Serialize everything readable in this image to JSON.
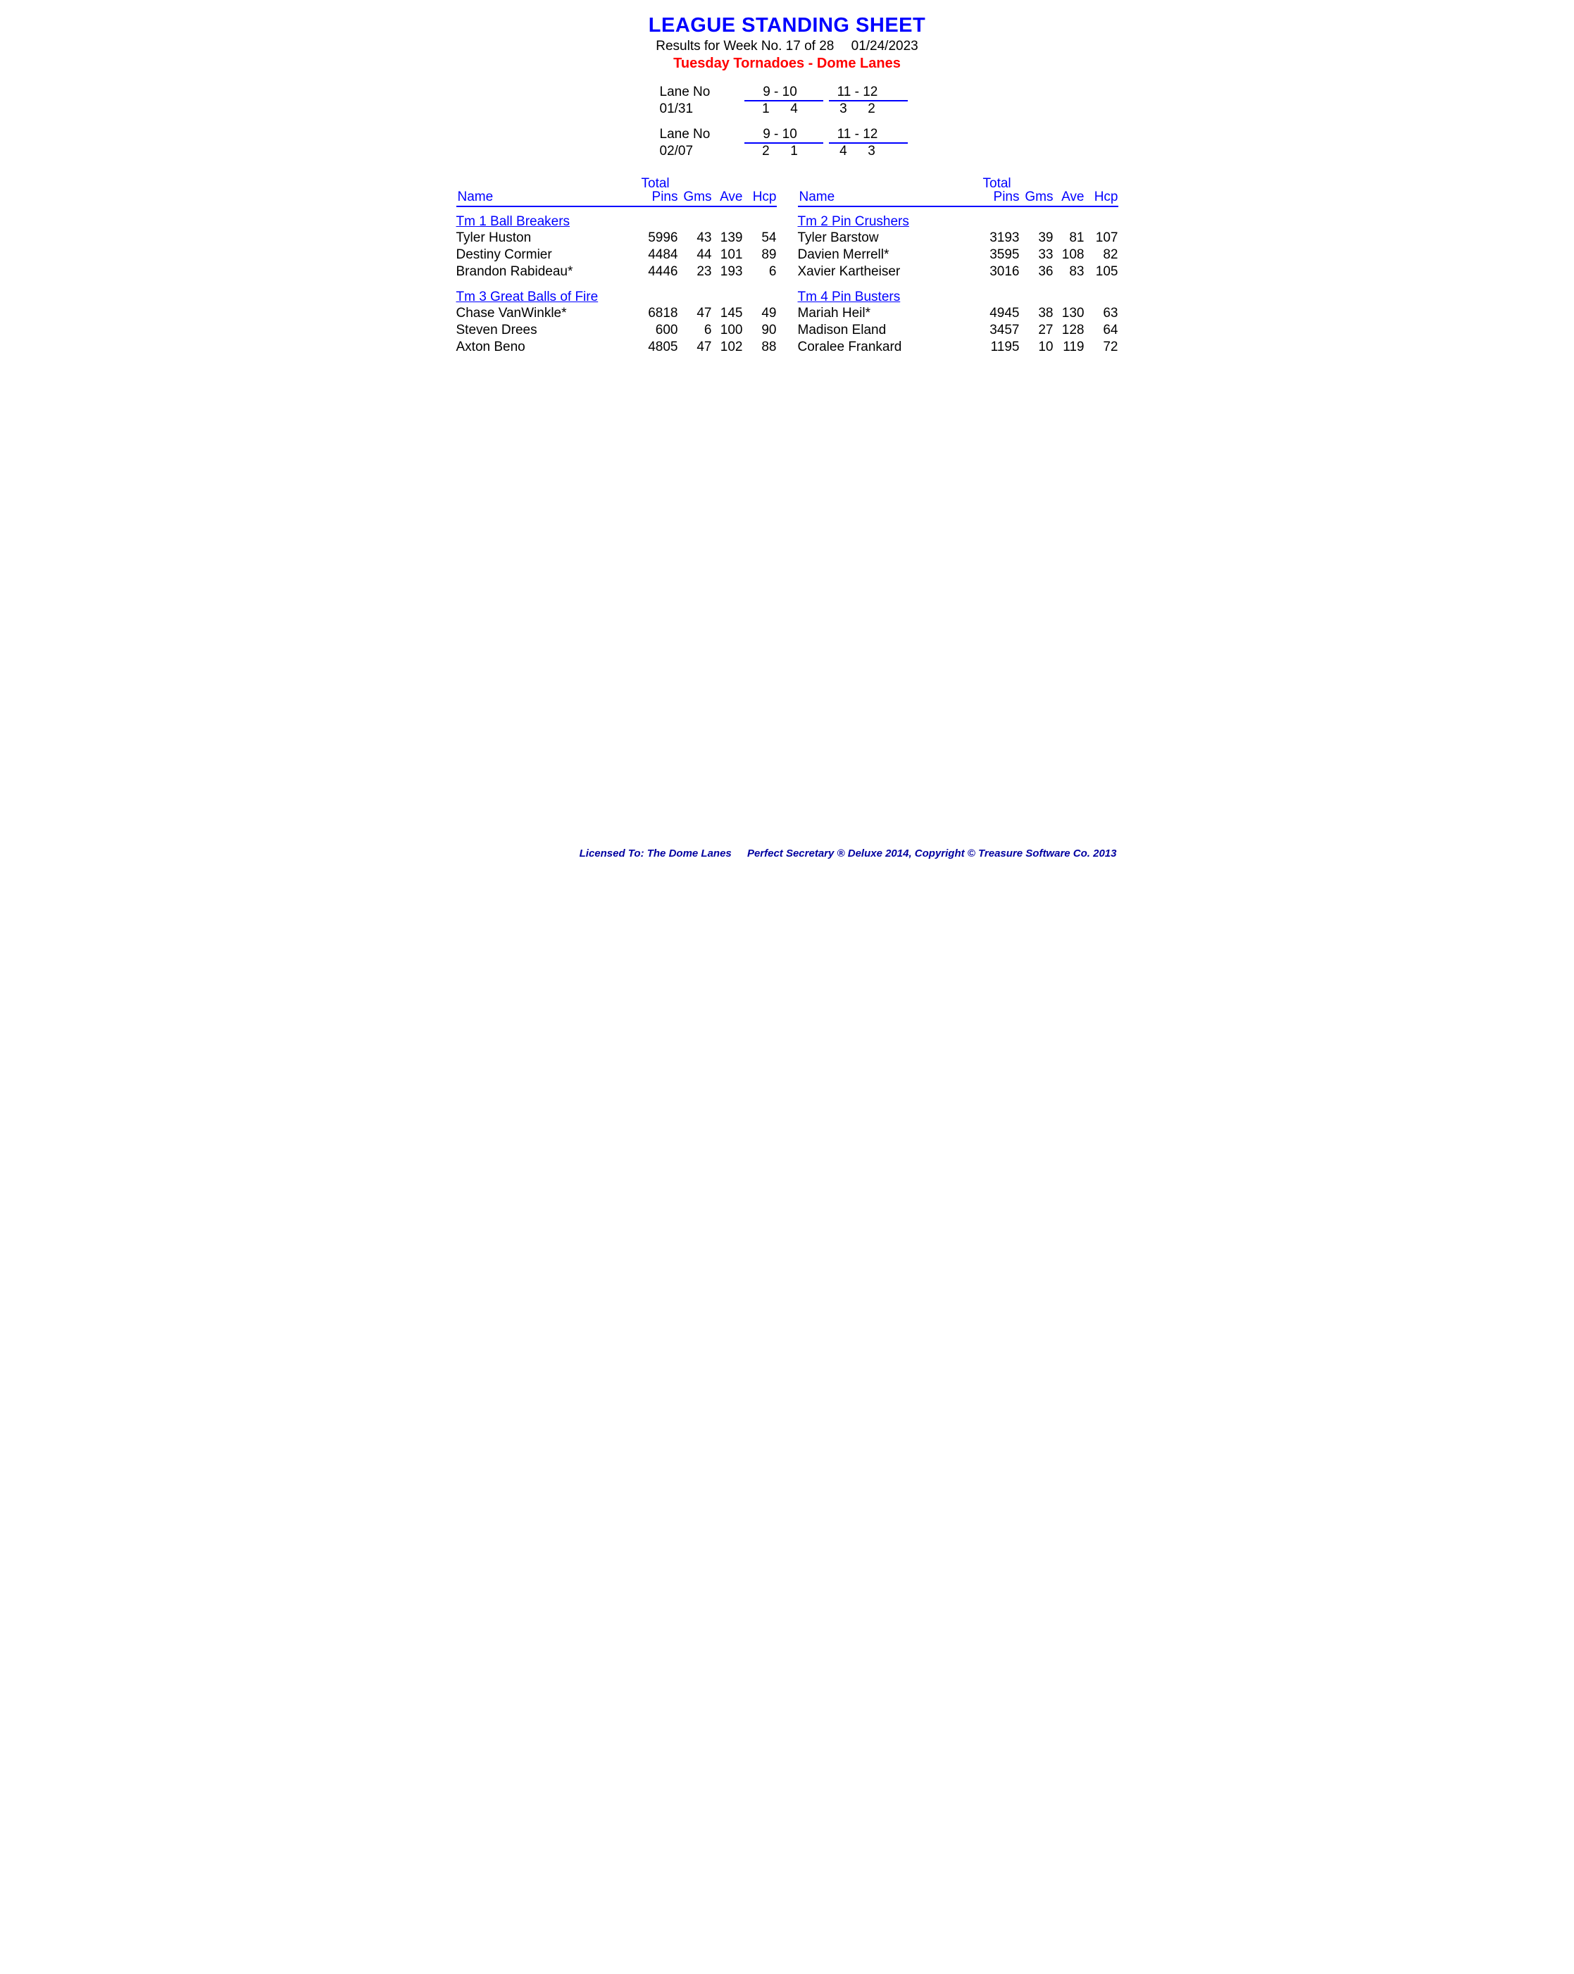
{
  "header": {
    "title": "LEAGUE STANDING SHEET",
    "subtitle": "Results for Week No. 17 of 28  01/24/2023",
    "league": "Tuesday Tornadoes - Dome Lanes"
  },
  "lane_schedule": [
    {
      "label": "Lane No",
      "pair_a": "9 - 10",
      "pair_b": "11 - 12",
      "date": "01/31",
      "a1": "1",
      "a2": "4",
      "b1": "3",
      "b2": "2"
    },
    {
      "label": "Lane No",
      "pair_a": "9 - 10",
      "pair_b": "11 - 12",
      "date": "02/07",
      "a1": "2",
      "a2": "1",
      "b1": "4",
      "b2": "3"
    }
  ],
  "column_headers": {
    "name": "Name",
    "total": "Total",
    "pins": "Pins",
    "gms": "Gms",
    "ave": "Ave",
    "hcp": "Hcp"
  },
  "left_teams": [
    {
      "team": "Tm 1 Ball Breakers",
      "players": [
        {
          "name": "Tyler Huston",
          "pins": "5996",
          "gms": "43",
          "ave": "139",
          "hcp": "54"
        },
        {
          "name": "Destiny Cormier",
          "pins": "4484",
          "gms": "44",
          "ave": "101",
          "hcp": "89"
        },
        {
          "name": "Brandon Rabideau*",
          "pins": "4446",
          "gms": "23",
          "ave": "193",
          "hcp": "6"
        }
      ]
    },
    {
      "team": "Tm 3 Great Balls of Fire",
      "players": [
        {
          "name": "Chase VanWinkle*",
          "pins": "6818",
          "gms": "47",
          "ave": "145",
          "hcp": "49"
        },
        {
          "name": "Steven Drees",
          "pins": "600",
          "gms": "6",
          "ave": "100",
          "hcp": "90"
        },
        {
          "name": "Axton Beno",
          "pins": "4805",
          "gms": "47",
          "ave": "102",
          "hcp": "88"
        }
      ]
    }
  ],
  "right_teams": [
    {
      "team": "Tm 2 Pin Crushers",
      "players": [
        {
          "name": "Tyler Barstow",
          "pins": "3193",
          "gms": "39",
          "ave": "81",
          "hcp": "107"
        },
        {
          "name": "Davien Merrell*",
          "pins": "3595",
          "gms": "33",
          "ave": "108",
          "hcp": "82"
        },
        {
          "name": "Xavier Kartheiser",
          "pins": "3016",
          "gms": "36",
          "ave": "83",
          "hcp": "105"
        }
      ]
    },
    {
      "team": "Tm 4 Pin Busters",
      "players": [
        {
          "name": "Mariah Heil*",
          "pins": "4945",
          "gms": "38",
          "ave": "130",
          "hcp": "63"
        },
        {
          "name": "Madison Eland",
          "pins": "3457",
          "gms": "27",
          "ave": "128",
          "hcp": "64"
        },
        {
          "name": "Coralee Frankard",
          "pins": "1195",
          "gms": "10",
          "ave": "119",
          "hcp": "72"
        }
      ]
    }
  ],
  "footer": {
    "licensed": "Licensed To: The Dome Lanes",
    "software": "Perfect Secretary ® Deluxe  2014, Copyright © Treasure Software Co. 2013"
  }
}
